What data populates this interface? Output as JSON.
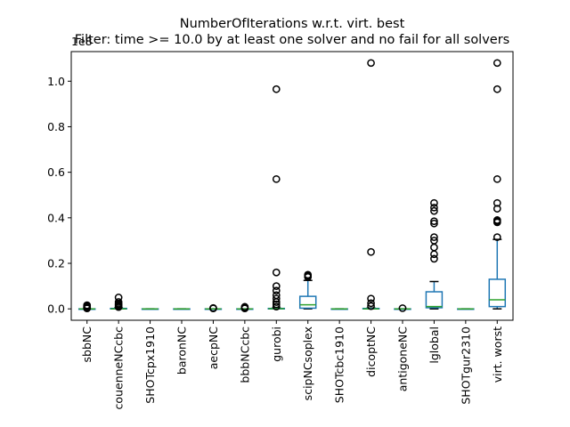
{
  "chart_data": {
    "type": "box",
    "title": "NumberOfIterations w.r.t. virt. best",
    "subtitle": "Filter: time >= 10.0 by at least one solver and no fail for all solvers",
    "y_offset_label": "1e8",
    "ylim": [
      -0.05,
      1.13
    ],
    "y_ticks": [
      0.0,
      0.2,
      0.4,
      0.6,
      0.8,
      1.0
    ],
    "y_tick_labels": [
      "0.0",
      "0.2",
      "0.4",
      "0.6",
      "0.8",
      "1.0"
    ],
    "grid": false,
    "colors": {
      "box": "#1f77b4",
      "median": "#2ca02c",
      "whisker": "#000000",
      "flier": "#000000"
    },
    "categories": [
      "sbbNC",
      "couenneNCcbc",
      "SHOTcpx1910",
      "baronNC",
      "aecpNC",
      "bbbNCcbc",
      "gurobi",
      "scipNCsoplex",
      "SHOTcbc1910",
      "dicoptNC",
      "antigoneNC",
      "lglobal",
      "SHOTgur2310",
      "virt. worst"
    ],
    "boxes": [
      {
        "label": "sbbNC",
        "whislo": 0,
        "q1": 0,
        "med": 0,
        "q3": 0,
        "whishi": 0,
        "fliers": [
          0.002,
          0.004,
          0.006,
          0.008,
          0.01,
          0.013,
          0.016
        ]
      },
      {
        "label": "couenneNCcbc",
        "whislo": 0,
        "q1": 0,
        "med": 0,
        "q3": 0.002,
        "whishi": 0.004,
        "fliers": [
          0.008,
          0.013,
          0.018,
          0.023,
          0.03,
          0.05
        ]
      },
      {
        "label": "SHOTcpx1910",
        "whislo": 0,
        "q1": 0,
        "med": 0,
        "q3": 0,
        "whishi": 0,
        "fliers": []
      },
      {
        "label": "baronNC",
        "whislo": 0,
        "q1": 0,
        "med": 0,
        "q3": 0,
        "whishi": 0,
        "fliers": []
      },
      {
        "label": "aecpNC",
        "whislo": 0,
        "q1": 0,
        "med": 0,
        "q3": 0,
        "whishi": 0,
        "fliers": [
          0.002,
          0.004
        ]
      },
      {
        "label": "bbbNCcbc",
        "whislo": 0,
        "q1": 0,
        "med": 0,
        "q3": 0,
        "whishi": 0,
        "fliers": [
          0.002,
          0.005,
          0.009
        ]
      },
      {
        "label": "gurobi",
        "whislo": 0,
        "q1": 0,
        "med": 0.001,
        "q3": 0.002,
        "whishi": 0.004,
        "fliers": [
          0.01,
          0.02,
          0.03,
          0.045,
          0.06,
          0.08,
          0.1,
          0.16,
          0.57,
          0.965
        ]
      },
      {
        "label": "scipNCsoplex",
        "whislo": 0,
        "q1": 0.003,
        "med": 0.018,
        "q3": 0.055,
        "whishi": 0.125,
        "fliers": [
          0.14,
          0.145,
          0.15
        ]
      },
      {
        "label": "SHOTcbc1910",
        "whislo": 0,
        "q1": 0,
        "med": 0,
        "q3": 0,
        "whishi": 0,
        "fliers": []
      },
      {
        "label": "dicoptNC",
        "whislo": 0,
        "q1": 0,
        "med": 0,
        "q3": 0.002,
        "whishi": 0.004,
        "fliers": [
          0.012,
          0.025,
          0.045,
          0.25,
          1.08
        ]
      },
      {
        "label": "antigoneNC",
        "whislo": 0,
        "q1": 0,
        "med": 0,
        "q3": 0,
        "whishi": 0,
        "fliers": [
          0.003
        ]
      },
      {
        "label": "lglobal",
        "whislo": 0,
        "q1": 0.005,
        "med": 0.01,
        "q3": 0.075,
        "whishi": 0.12,
        "fliers": [
          0.22,
          0.24,
          0.27,
          0.3,
          0.315,
          0.375,
          0.385,
          0.43,
          0.445,
          0.465
        ]
      },
      {
        "label": "SHOTgur2310",
        "whislo": 0,
        "q1": 0,
        "med": 0,
        "q3": 0,
        "whishi": 0,
        "fliers": []
      },
      {
        "label": "virt. worst",
        "whislo": 0,
        "q1": 0.01,
        "med": 0.04,
        "q3": 0.13,
        "whishi": 0.305,
        "fliers": [
          0.315,
          0.38,
          0.385,
          0.39,
          0.44,
          0.465,
          0.57,
          0.965,
          1.08
        ]
      }
    ]
  }
}
